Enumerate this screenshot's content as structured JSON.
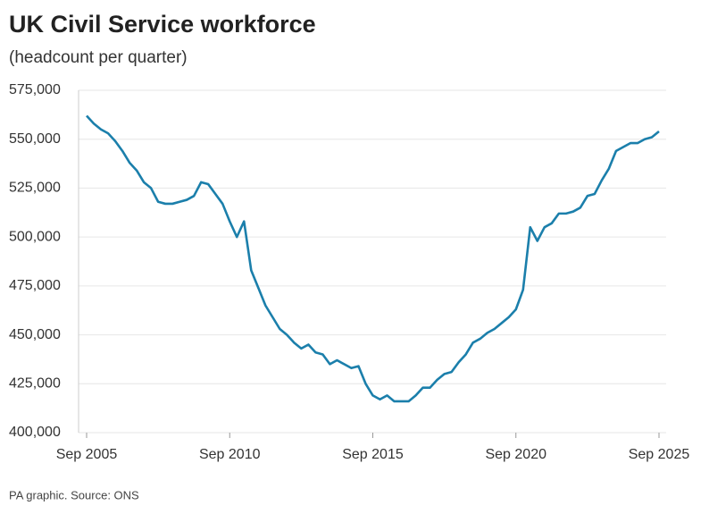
{
  "chart_data": {
    "type": "line",
    "title": "UK Civil Service workforce",
    "subtitle": "(headcount per quarter)",
    "source": "PA graphic. Source: ONS",
    "categories": [
      "Sep 2005",
      null,
      null,
      null,
      null,
      null,
      null,
      null,
      null,
      null,
      null,
      null,
      null,
      null,
      null,
      null,
      null,
      null,
      null,
      null,
      "Sep 2010",
      null,
      null,
      null,
      null,
      null,
      null,
      null,
      null,
      null,
      null,
      null,
      null,
      null,
      null,
      null,
      null,
      null,
      null,
      null,
      "Sep 2015",
      null,
      null,
      null,
      null,
      null,
      null,
      null,
      null,
      null,
      null,
      null,
      null,
      null,
      null,
      null,
      null,
      null,
      null,
      null,
      "Sep 2020",
      null,
      null,
      null,
      null,
      null,
      null,
      null,
      null,
      null,
      null,
      null,
      null,
      null,
      null,
      null,
      null,
      null,
      null,
      null,
      "Sep 2025"
    ],
    "series": [
      {
        "name": "Headcount",
        "color": "#1b7fab",
        "values": [
          562000,
          558000,
          555000,
          553000,
          549000,
          544000,
          538000,
          534000,
          528000,
          525000,
          518000,
          517000,
          517000,
          518000,
          519000,
          521000,
          528000,
          527000,
          522000,
          517000,
          508000,
          500000,
          508000,
          483000,
          474000,
          465000,
          459000,
          453000,
          450000,
          446000,
          443000,
          445000,
          441000,
          440000,
          435000,
          437000,
          435000,
          433000,
          434000,
          425000,
          419000,
          417000,
          419000,
          416000,
          416000,
          416000,
          419000,
          423000,
          423000,
          427000,
          430000,
          431000,
          436000,
          440000,
          446000,
          448000,
          451000,
          453000,
          456000,
          459000,
          463000,
          473000,
          505000,
          498000,
          505000,
          507000,
          512000,
          512000,
          513000,
          515000,
          521000,
          522000,
          529000,
          535000,
          544000,
          546000,
          548000,
          548000,
          550000,
          551000,
          554000
        ]
      }
    ],
    "ylim": [
      400000,
      575000
    ],
    "yticks": [
      {
        "value": 400000,
        "label": "400,000"
      },
      {
        "value": 425000,
        "label": "425,000"
      },
      {
        "value": 450000,
        "label": "450,000"
      },
      {
        "value": 475000,
        "label": "475,000"
      },
      {
        "value": 500000,
        "label": "500,000"
      },
      {
        "value": 525000,
        "label": "525,000"
      },
      {
        "value": 550000,
        "label": "550,000"
      },
      {
        "value": 575000,
        "label": "575,000"
      }
    ],
    "grid": true
  }
}
